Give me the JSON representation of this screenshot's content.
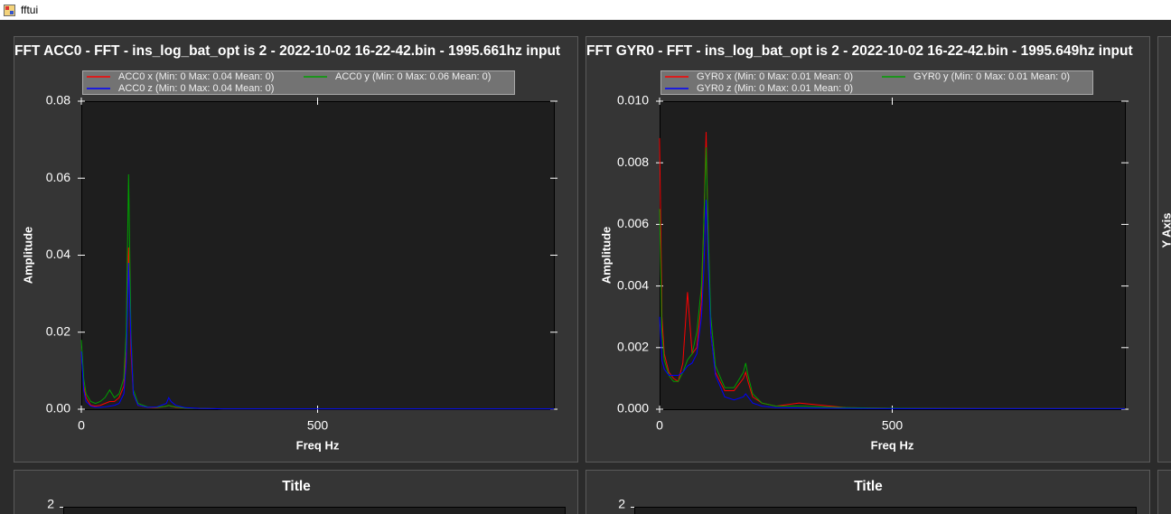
{
  "window": {
    "title": "fftui"
  },
  "chart_data": [
    {
      "type": "line",
      "title": "FFT ACC0 - FFT - ins_log_bat_opt is 2 - 2022-10-02 16-22-42.bin - 1995.661hz input",
      "xlabel": "Freq Hz",
      "ylabel": "Amplitude",
      "x": [
        0,
        5,
        10,
        20,
        30,
        40,
        50,
        60,
        70,
        80,
        90,
        95,
        100,
        105,
        110,
        120,
        140,
        160,
        180,
        185,
        190,
        200,
        220,
        250,
        300,
        400,
        500,
        700,
        1000
      ],
      "xlim": [
        0,
        1000
      ],
      "xticks": [
        0,
        500
      ],
      "ylim": [
        0,
        0.08
      ],
      "yticks": [
        {
          "value": 0,
          "label": "0.00"
        },
        0.02,
        0.04,
        0.06,
        0.08
      ],
      "grid": false,
      "legend": "top",
      "series": [
        {
          "name": "ACC0 x (Min: 0 Max: 0.04 Mean: 0)",
          "color": "#ff0000",
          "values": [
            0.015,
            0.006,
            0.003,
            0.001,
            0.0008,
            0.001,
            0.0015,
            0.002,
            0.002,
            0.003,
            0.006,
            0.015,
            0.042,
            0.015,
            0.004,
            0.001,
            0.0005,
            0.0004,
            0.0008,
            0.001,
            0.0008,
            0.0005,
            0.0003,
            0.0002,
            0.0001,
            0.0001,
            0.0001,
            0.0001,
            0.0001
          ]
        },
        {
          "name": "ACC0 y (Min: 0 Max: 0.06 Mean: 0)",
          "color": "#00a000",
          "values": [
            0.018,
            0.008,
            0.004,
            0.002,
            0.0015,
            0.002,
            0.003,
            0.005,
            0.003,
            0.004,
            0.008,
            0.02,
            0.061,
            0.02,
            0.005,
            0.0015,
            0.0006,
            0.0005,
            0.0008,
            0.001,
            0.0008,
            0.0006,
            0.0003,
            0.0002,
            0.0001,
            0.0001,
            0.0001,
            0.0001,
            0.0001
          ]
        },
        {
          "name": "ACC0 z (Min: 0 Max: 0.04 Mean: 0)",
          "color": "#0000ff",
          "values": [
            0.015,
            0.005,
            0.002,
            0.0008,
            0.0005,
            0.0005,
            0.0006,
            0.0008,
            0.001,
            0.0015,
            0.004,
            0.012,
            0.038,
            0.018,
            0.004,
            0.001,
            0.0005,
            0.0006,
            0.0015,
            0.003,
            0.002,
            0.001,
            0.0004,
            0.0002,
            0.0001,
            0.0001,
            0.0001,
            0.0001,
            0.0001
          ]
        }
      ]
    },
    {
      "type": "line",
      "title": "FFT GYR0 - FFT - ins_log_bat_opt is 2 - 2022-10-02 16-22-42.bin - 1995.649hz input",
      "xlabel": "Freq Hz",
      "ylabel": "Amplitude",
      "x": [
        0,
        5,
        10,
        20,
        30,
        40,
        50,
        60,
        70,
        80,
        90,
        95,
        100,
        105,
        110,
        120,
        140,
        160,
        180,
        185,
        190,
        200,
        220,
        250,
        300,
        400,
        500,
        700,
        1000
      ],
      "xlim": [
        0,
        1000
      ],
      "xticks": [
        0,
        500
      ],
      "ylim": [
        0,
        0.01
      ],
      "yticks": [
        {
          "value": 0,
          "label": "0.000"
        },
        0.002,
        0.004,
        0.006,
        0.008,
        {
          "value": 0.01,
          "label": "0.010"
        }
      ],
      "grid": false,
      "legend": "top",
      "series": [
        {
          "name": "GYR0 x (Min: 0 Max: 0.01 Mean: 0)",
          "color": "#ff0000",
          "values": [
            0.0088,
            0.003,
            0.0018,
            0.0012,
            0.001,
            0.0009,
            0.0015,
            0.0038,
            0.0018,
            0.002,
            0.0035,
            0.006,
            0.009,
            0.005,
            0.0025,
            0.0012,
            0.0006,
            0.0006,
            0.001,
            0.0012,
            0.0009,
            0.0004,
            0.0002,
            0.0001,
            0.0002,
            5e-05,
            3e-05,
            2e-05,
            2e-05
          ]
        },
        {
          "name": "GYR0 y (Min: 0 Max: 0.01 Mean: 0)",
          "color": "#00a000",
          "values": [
            0.0065,
            0.0025,
            0.0016,
            0.0011,
            0.0009,
            0.0009,
            0.0012,
            0.0016,
            0.0018,
            0.0025,
            0.004,
            0.006,
            0.0085,
            0.0055,
            0.003,
            0.0014,
            0.0007,
            0.0007,
            0.0012,
            0.0015,
            0.0011,
            0.0005,
            0.0002,
            0.0001,
            0.0001,
            5e-05,
            3e-05,
            2e-05,
            2e-05
          ]
        },
        {
          "name": "GYR0 z (Min: 0 Max: 0.01 Mean: 0)",
          "color": "#0000ff",
          "values": [
            0.003,
            0.0016,
            0.0013,
            0.0011,
            0.0011,
            0.0011,
            0.0012,
            0.0014,
            0.0015,
            0.0018,
            0.003,
            0.0045,
            0.0068,
            0.0045,
            0.0025,
            0.0011,
            0.0004,
            0.0003,
            0.0004,
            0.0005,
            0.0004,
            0.0002,
            0.0001,
            5e-05,
            4e-05,
            3e-05,
            2e-05,
            2e-05,
            2e-05
          ]
        }
      ]
    }
  ],
  "lower_panels": [
    {
      "title": "Title",
      "y_tick": "2"
    },
    {
      "title": "Title",
      "y_tick": "2"
    }
  ],
  "right_panel": {
    "axis_label": "Y Axis"
  }
}
